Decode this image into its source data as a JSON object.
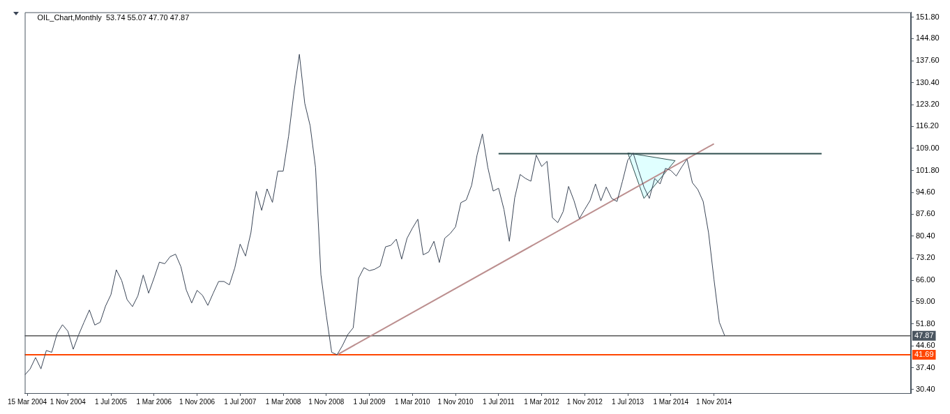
{
  "chart_data": {
    "type": "line",
    "title": "OIL_Chart,Monthly  53.74 55.07 47.70 47.87",
    "xlim": [
      "2004-03",
      "2017-11-19"
    ],
    "xticks": [
      {
        "value": "2004-03-15",
        "label": "15 Mar 2004"
      },
      {
        "value": "2004-11-01",
        "label": "1 Nov 2004"
      },
      {
        "value": "2005-07-01",
        "label": "1 Jul 2005"
      },
      {
        "value": "2006-03-01",
        "label": "1 Mar 2006"
      },
      {
        "value": "2006-11-01",
        "label": "1 Nov 2006"
      },
      {
        "value": "2007-07-01",
        "label": "1 Jul 2007"
      },
      {
        "value": "2008-03-01",
        "label": "1 Mar 2008"
      },
      {
        "value": "2008-11-01",
        "label": "1 Nov 2008"
      },
      {
        "value": "2009-07-01",
        "label": "1 Jul 2009"
      },
      {
        "value": "2010-03-01",
        "label": "1 Mar 2010"
      },
      {
        "value": "2010-11-01",
        "label": "1 Nov 2010"
      },
      {
        "value": "2011-07-01",
        "label": "1 Jul 2011"
      },
      {
        "value": "2012-03-01",
        "label": "1 Mar 2012"
      },
      {
        "value": "2012-11-01",
        "label": "1 Nov 2012"
      },
      {
        "value": "2013-07-01",
        "label": "1 Jul 2013"
      },
      {
        "value": "2014-03-01",
        "label": "1 Mar 2014"
      },
      {
        "value": "2014-11-01",
        "label": "1 Nov 2014"
      }
    ],
    "ylim": [
      29.2,
      153.4
    ],
    "yticks": [
      {
        "value": 30.4,
        "label": "30.40"
      },
      {
        "value": 37.4,
        "label": "37.40"
      },
      {
        "value": 44.6,
        "label": "44.60"
      },
      {
        "value": 51.8,
        "label": "51.80"
      },
      {
        "value": 59,
        "label": "59.00"
      },
      {
        "value": 66,
        "label": "66.00"
      },
      {
        "value": 73.2,
        "label": "73.20"
      },
      {
        "value": 80.4,
        "label": "80.40"
      },
      {
        "value": 87.6,
        "label": "87.60"
      },
      {
        "value": 94.6,
        "label": "94.60"
      },
      {
        "value": 101.8,
        "label": "101.80"
      },
      {
        "value": 109,
        "label": "109.00"
      },
      {
        "value": 116.2,
        "label": "116.20"
      },
      {
        "value": 123.2,
        "label": "123.20"
      },
      {
        "value": 130.4,
        "label": "130.40"
      },
      {
        "value": 137.6,
        "label": "137.60"
      },
      {
        "value": 144.8,
        "label": "144.80"
      },
      {
        "value": 151.8,
        "label": "151.80"
      }
    ],
    "grid": false,
    "legend": false,
    "ref_lines": [
      {
        "axis": "y",
        "value": 47.87,
        "label": "47.87",
        "color": "#000000"
      },
      {
        "axis": "y",
        "value": 41.69,
        "label": "41.69",
        "color": "#ff4500"
      }
    ],
    "series": [
      {
        "color": "#3a4556",
        "x": [
          "2004-03",
          "2004-04",
          "2004-05",
          "2004-06",
          "2004-07",
          "2004-08",
          "2004-09",
          "2004-10",
          "2004-11",
          "2004-12",
          "2005-01",
          "2005-02",
          "2005-03",
          "2005-04",
          "2005-05",
          "2005-06",
          "2005-07",
          "2005-08",
          "2005-09",
          "2005-10",
          "2005-11",
          "2005-12",
          "2006-01",
          "2006-02",
          "2006-03",
          "2006-04",
          "2006-05",
          "2006-06",
          "2006-07",
          "2006-08",
          "2006-09",
          "2006-10",
          "2006-11",
          "2006-12",
          "2007-01",
          "2007-02",
          "2007-03",
          "2007-04",
          "2007-05",
          "2007-06",
          "2007-07",
          "2007-08",
          "2007-09",
          "2007-10",
          "2007-11",
          "2007-12",
          "2008-01",
          "2008-02",
          "2008-03",
          "2008-04",
          "2008-05",
          "2008-06",
          "2008-07",
          "2008-08",
          "2008-09",
          "2008-10",
          "2008-11",
          "2008-12",
          "2009-01",
          "2009-02",
          "2009-03",
          "2009-04",
          "2009-05",
          "2009-06",
          "2009-07",
          "2009-08",
          "2009-09",
          "2009-10",
          "2009-11",
          "2009-12",
          "2010-01",
          "2010-02",
          "2010-03",
          "2010-04",
          "2010-05",
          "2010-06",
          "2010-07",
          "2010-08",
          "2010-09",
          "2010-10",
          "2010-11",
          "2010-12",
          "2011-01",
          "2011-02",
          "2011-03",
          "2011-04",
          "2011-05",
          "2011-06",
          "2011-07",
          "2011-08",
          "2011-09",
          "2011-10",
          "2011-11",
          "2011-12",
          "2012-01",
          "2012-02",
          "2012-03",
          "2012-04",
          "2012-05",
          "2012-06",
          "2012-07",
          "2012-08",
          "2012-09",
          "2012-10",
          "2012-11",
          "2012-12",
          "2013-01",
          "2013-02",
          "2013-03",
          "2013-04",
          "2013-05",
          "2013-06",
          "2013-07",
          "2013-08",
          "2013-09",
          "2013-10",
          "2013-11",
          "2013-12",
          "2014-01",
          "2014-02",
          "2014-03",
          "2014-04",
          "2014-05",
          "2014-06",
          "2014-07",
          "2014-08",
          "2014-09",
          "2014-10",
          "2014-11",
          "2014-12",
          "2015-01"
        ],
        "values": [
          35.1,
          37.1,
          40.8,
          37.1,
          43.1,
          42.5,
          48.6,
          51.5,
          49.4,
          43.5,
          48.2,
          52.3,
          56.3,
          51.4,
          52.3,
          57.6,
          61.3,
          69.4,
          65.9,
          59.7,
          57.4,
          60.9,
          67.7,
          61.8,
          66.7,
          71.9,
          71.4,
          73.7,
          74.5,
          70.4,
          62.8,
          58.6,
          62.7,
          61.1,
          57.8,
          61.8,
          65.6,
          65.6,
          64.5,
          70.0,
          77.8,
          73.9,
          81.5,
          95.0,
          88.8,
          95.8,
          91.4,
          101.6,
          101.6,
          113.0,
          127.4,
          139.7,
          123.7,
          116.4,
          102.8,
          67.8,
          54.6,
          42.5,
          41.7,
          44.7,
          48.3,
          50.5,
          66.7,
          70.1,
          69.1,
          69.6,
          70.6,
          76.9,
          77.4,
          79.4,
          72.9,
          79.7,
          83.0,
          85.9,
          74.3,
          75.2,
          78.7,
          71.8,
          79.7,
          81.2,
          83.4,
          91.3,
          92.2,
          97.0,
          106.8,
          113.7,
          102.8,
          95.1,
          96.0,
          89.1,
          78.7,
          92.9,
          100.5,
          99.2,
          98.3,
          106.8,
          103.1,
          104.8,
          86.4,
          84.8,
          88.4,
          96.6,
          92.0,
          86.1,
          89.1,
          92.0,
          97.4,
          91.9,
          96.4,
          92.7,
          91.7,
          98.2,
          105.2,
          107.5,
          101.8,
          96.4,
          92.7,
          99.2,
          97.4,
          102.5,
          101.8,
          100.0,
          102.9,
          105.5,
          97.8,
          95.6,
          91.7,
          81.5,
          66.4,
          52.3,
          47.9
        ]
      },
      {
        "type": "line",
        "color": "#2f4f4f",
        "x": [
          "2011-07",
          "2016-07"
        ],
        "values": [
          107.3,
          107.3
        ]
      },
      {
        "type": "line",
        "color": "#bc8f8f",
        "x": [
          "2009-01",
          "2014-11"
        ],
        "values": [
          41.7,
          110.5
        ]
      },
      {
        "type": "area",
        "color": "#e0ffff",
        "x": [
          "2013-07",
          "2013-10",
          "2014-03-25",
          "2013-07"
        ],
        "values": [
          107.5,
          92.7,
          105.0,
          107.5
        ]
      }
    ]
  }
}
